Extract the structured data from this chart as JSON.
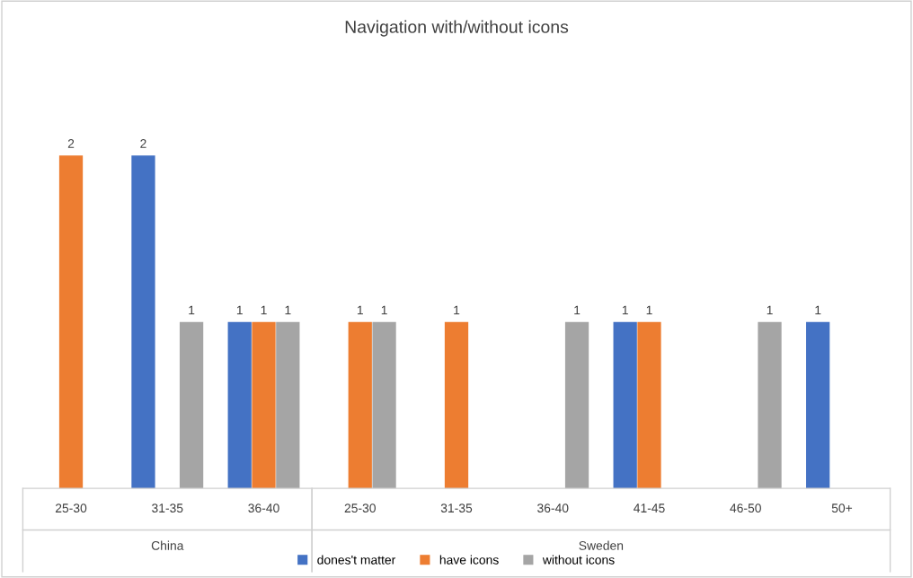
{
  "chart_data": {
    "type": "bar",
    "title": "Navigation with/without icons",
    "categories": [
      "25-30",
      "31-35",
      "36-40",
      "25-30",
      "31-35",
      "36-40",
      "41-45",
      "46-50",
      "50+"
    ],
    "series": [
      {
        "name": "dones't matter",
        "color": "#4472c4",
        "values": [
          null,
          2,
          1,
          null,
          null,
          null,
          1,
          null,
          1
        ]
      },
      {
        "name": "have icons",
        "color": "#ed7d31",
        "values": [
          2,
          null,
          1,
          1,
          1,
          null,
          1,
          null,
          null
        ]
      },
      {
        "name": "without icons",
        "color": "#a5a5a5",
        "values": [
          null,
          1,
          1,
          1,
          null,
          1,
          null,
          1,
          null
        ]
      }
    ],
    "annotations": [
      "China",
      "Sweden"
    ],
    "data_labels": true,
    "legend": "bottom",
    "grid": false,
    "tick_labels": "x"
  }
}
